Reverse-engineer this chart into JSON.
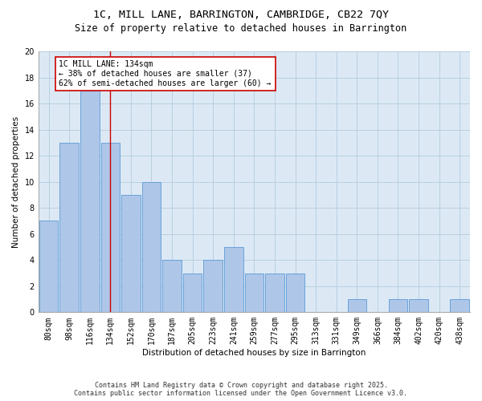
{
  "title1": "1C, MILL LANE, BARRINGTON, CAMBRIDGE, CB22 7QY",
  "title2": "Size of property relative to detached houses in Barrington",
  "xlabel": "Distribution of detached houses by size in Barrington",
  "ylabel": "Number of detached properties",
  "categories": [
    "80sqm",
    "98sqm",
    "116sqm",
    "134sqm",
    "152sqm",
    "170sqm",
    "187sqm",
    "205sqm",
    "223sqm",
    "241sqm",
    "259sqm",
    "277sqm",
    "295sqm",
    "313sqm",
    "331sqm",
    "349sqm",
    "366sqm",
    "384sqm",
    "402sqm",
    "420sqm",
    "438sqm"
  ],
  "values": [
    7,
    13,
    17,
    13,
    9,
    10,
    4,
    3,
    4,
    5,
    3,
    3,
    3,
    0,
    0,
    1,
    0,
    1,
    1,
    0,
    1
  ],
  "bar_color": "#aec6e8",
  "bar_edge_color": "#5b9bd5",
  "vline_x_index": 3,
  "vline_color": "#cc0000",
  "annotation_line1": "1C MILL LANE: 134sqm",
  "annotation_line2": "← 38% of detached houses are smaller (37)",
  "annotation_line3": "62% of semi-detached houses are larger (60) →",
  "annotation_box_color": "#ffffff",
  "annotation_box_edge_color": "#cc0000",
  "ylim": [
    0,
    20
  ],
  "yticks": [
    0,
    2,
    4,
    6,
    8,
    10,
    12,
    14,
    16,
    18,
    20
  ],
  "footer1": "Contains HM Land Registry data © Crown copyright and database right 2025.",
  "footer2": "Contains public sector information licensed under the Open Government Licence v3.0.",
  "bg_color": "#ffffff",
  "plot_bg_color": "#dce9f5",
  "grid_color": "#b8cfe0",
  "title_fontsize": 9.5,
  "subtitle_fontsize": 8.5,
  "axis_label_fontsize": 7.5,
  "tick_fontsize": 7,
  "annotation_fontsize": 7,
  "footer_fontsize": 6
}
